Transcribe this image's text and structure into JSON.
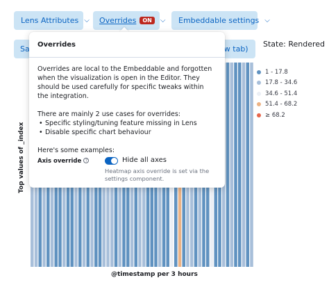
{
  "toolbar": {
    "lens_attributes_label": "Lens Attributes",
    "overrides_label": "Overrides",
    "overrides_badge": "ON",
    "embeddable_settings_label": "Embeddable settings",
    "save_label_partial": "Sav",
    "new_tab_label_partial": "ew tab)",
    "state_text": "State: Rendered"
  },
  "popover": {
    "title": "Overrides",
    "paragraph1": "Overrides are local to the Embeddable and forgotten when the visualization is open in the Editor. They should be used carefully for specific tweaks within the integration.",
    "paragraph2": "There are mainly 2 use cases for overrides:",
    "use_cases": [
      "Specific styling/tuning feature missing in Lens",
      "Disable specific chart behaviour"
    ],
    "examples_heading": "Here's some examples:",
    "axis_override": {
      "label": "Axis override",
      "help_icon": "question-circle-icon",
      "toggle_label": "Hide all axes",
      "toggle_on": true,
      "help_text": "Heatmap axis override is set via the settings component."
    }
  },
  "colors": {
    "accent": "#0b64c2",
    "button_bg": "#cce4f5",
    "badge": "#bd271e"
  },
  "chart_data": {
    "type": "heatmap",
    "xlabel": "@timestamp per 3 hours",
    "ylabel": "Top values of _index",
    "legend": [
      {
        "label": "1 - 17.8",
        "color": "#6092c0"
      },
      {
        "label": "17.8 - 34.6",
        "color": "#a8bfda"
      },
      {
        "label": "34.6 - 51.4",
        "color": "#ebeff5"
      },
      {
        "label": "51.4 - 68.2",
        "color": "#ecb385"
      },
      {
        "label": "≥ 68.2",
        "color": "#e7664c"
      }
    ],
    "legend_position": "right",
    "columns": [
      2,
      2,
      1,
      2,
      1,
      2,
      1,
      1,
      2,
      1,
      1,
      2,
      1,
      2,
      1,
      2,
      1,
      1,
      2,
      2,
      2,
      1,
      2,
      1,
      1,
      2,
      1,
      2,
      2,
      1,
      1,
      1,
      2,
      1,
      1,
      3,
      1,
      4,
      1,
      2,
      2,
      1,
      2,
      1,
      1,
      3,
      1,
      1,
      2,
      1,
      2,
      1,
      1,
      2,
      1,
      2
    ]
  }
}
